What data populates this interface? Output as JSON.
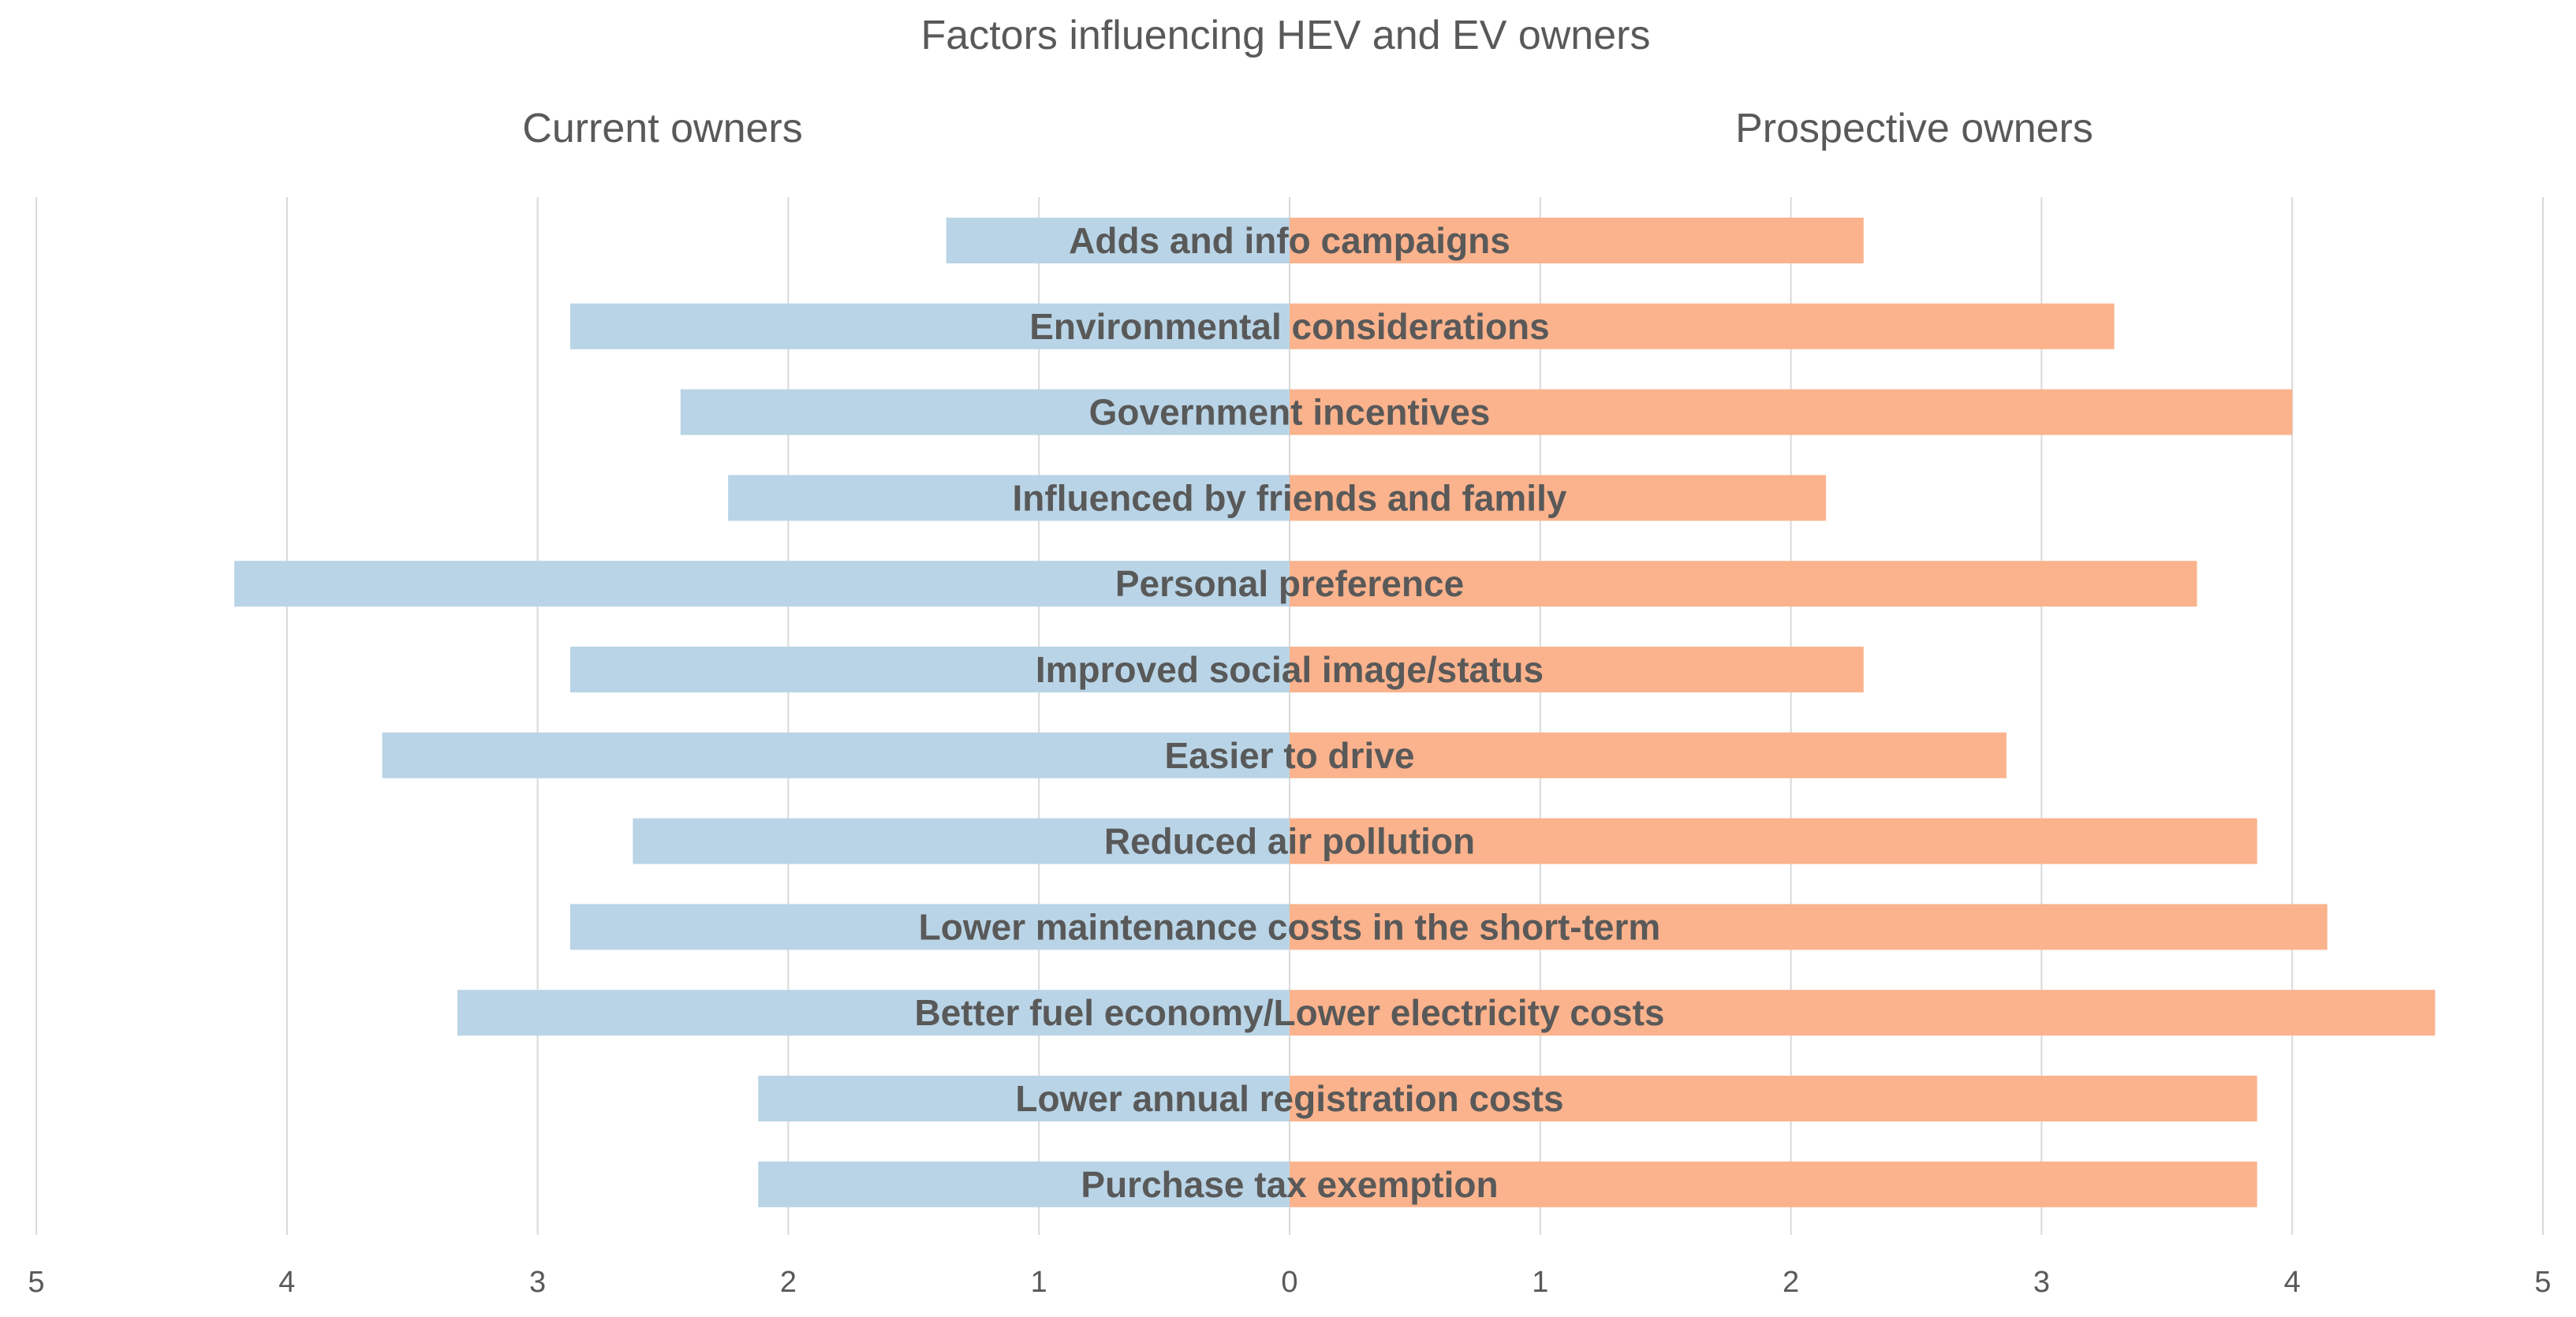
{
  "chart_data": {
    "type": "bar",
    "orientation": "horizontal-diverging",
    "title": "Factors influencing HEV and EV owners",
    "left_panel_title": "Current owners",
    "right_panel_title": "Prospective owners",
    "categories": [
      "Adds and info campaigns",
      "Environmental considerations",
      "Government incentives",
      "Influenced by friends and family",
      "Personal preference",
      "Improved social image/status",
      "Easier to drive",
      "Reduced air pollution",
      "Lower maintenance costs in the short-term",
      "Better fuel economy/Lower electricity costs",
      "Lower annual registration costs",
      "Purchase tax exemption"
    ],
    "series": [
      {
        "name": "Current owners",
        "color": "#b9d4e6",
        "values": [
          1.37,
          2.87,
          2.43,
          2.24,
          4.21,
          2.87,
          3.62,
          2.62,
          2.87,
          3.32,
          2.12,
          2.12
        ]
      },
      {
        "name": "Prospective owners",
        "color": "#fbb38d",
        "values": [
          2.29,
          3.29,
          4.0,
          2.14,
          3.62,
          2.29,
          2.86,
          3.86,
          4.14,
          4.57,
          3.86,
          3.86
        ]
      }
    ],
    "xlim": [
      -5,
      5
    ],
    "ticks": [
      {
        "value": -5,
        "label": "5"
      },
      {
        "value": -4,
        "label": "4"
      },
      {
        "value": -3,
        "label": "3"
      },
      {
        "value": -2,
        "label": "2"
      },
      {
        "value": -1,
        "label": "1"
      },
      {
        "value": 0,
        "label": "0"
      },
      {
        "value": 1,
        "label": "1"
      },
      {
        "value": 2,
        "label": "2"
      },
      {
        "value": 3,
        "label": "3"
      },
      {
        "value": 4,
        "label": "4"
      },
      {
        "value": 5,
        "label": "5"
      }
    ],
    "grid": true,
    "gridline_color": "#d9d9d9"
  }
}
